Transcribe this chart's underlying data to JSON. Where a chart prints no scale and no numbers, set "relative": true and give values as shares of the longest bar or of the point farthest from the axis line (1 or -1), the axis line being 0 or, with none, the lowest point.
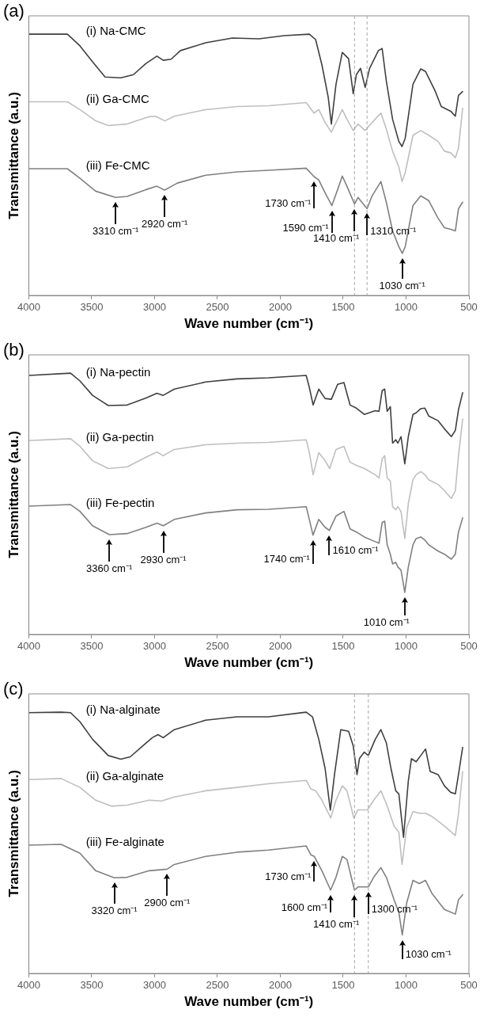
{
  "chart_data": [
    {
      "type": "line",
      "title": "(a)",
      "xlabel": "Wave number (cm⁻¹)",
      "ylabel": "Transmittance (a.u.)",
      "relative": true,
      "legend": false,
      "grid": false,
      "xlim": [
        4000,
        500
      ],
      "xticks": [
        4000,
        3500,
        3000,
        2500,
        2000,
        1500,
        1000,
        500
      ],
      "series": [
        {
          "name": "(i) Na-CMC",
          "color": "#3f3f3f",
          "x": [
            4000,
            3693,
            3593,
            3493,
            3393,
            3268,
            3168,
            3068,
            2981,
            2931,
            2868,
            2794,
            2594,
            2381,
            2169,
            1969,
            1769,
            1719,
            1669,
            1619,
            1594,
            1557,
            1507,
            1457,
            1420,
            1395,
            1362,
            1325,
            1290,
            1220,
            1190,
            1157,
            1107,
            1057,
            1032,
            1007,
            945,
            883,
            845,
            770,
            720,
            645,
            608,
            583,
            550
          ],
          "values": [
            1.0,
            1.0,
            0.955,
            0.894,
            0.836,
            0.833,
            0.845,
            0.888,
            0.916,
            0.9,
            0.904,
            0.937,
            0.967,
            0.985,
            0.982,
            0.994,
            1.0,
            0.979,
            0.882,
            0.759,
            0.656,
            0.808,
            0.93,
            0.906,
            0.772,
            0.845,
            0.869,
            0.796,
            0.869,
            0.937,
            0.945,
            0.821,
            0.674,
            0.589,
            0.57,
            0.601,
            0.808,
            0.867,
            0.857,
            0.784,
            0.723,
            0.705,
            0.686,
            0.766,
            0.78
          ]
        },
        {
          "name": "(ii) Ga-CMC",
          "color": "#bfbfbf",
          "x": [
            4000,
            3693,
            3593,
            3468,
            3368,
            3218,
            3043,
            2993,
            2918,
            2843,
            2594,
            2344,
            2094,
            1794,
            1732,
            1694,
            1644,
            1594,
            1544,
            1507,
            1470,
            1420,
            1382,
            1325,
            1270,
            1200,
            1157,
            1107,
            1057,
            1032,
            1007,
            945,
            883,
            820,
            745,
            695,
            645,
            608,
            583,
            550
          ],
          "values": [
            0.741,
            0.741,
            0.711,
            0.668,
            0.65,
            0.656,
            0.684,
            0.686,
            0.668,
            0.686,
            0.711,
            0.723,
            0.726,
            0.738,
            0.698,
            0.711,
            0.662,
            0.625,
            0.674,
            0.711,
            0.674,
            0.631,
            0.656,
            0.631,
            0.662,
            0.698,
            0.637,
            0.552,
            0.491,
            0.436,
            0.469,
            0.613,
            0.631,
            0.613,
            0.589,
            0.552,
            0.546,
            0.527,
            0.564,
            0.717
          ]
        },
        {
          "name": "(iii) Fe-CMC",
          "color": "#808080",
          "x": [
            4000,
            3693,
            3593,
            3468,
            3310,
            3218,
            3068,
            2981,
            2920,
            2818,
            2594,
            2344,
            2094,
            1794,
            1730,
            1694,
            1644,
            1590,
            1544,
            1507,
            1470,
            1410,
            1382,
            1310,
            1270,
            1200,
            1157,
            1107,
            1057,
            1030,
            1007,
            945,
            883,
            820,
            745,
            695,
            645,
            608,
            583,
            550
          ],
          "values": [
            0.485,
            0.485,
            0.448,
            0.399,
            0.375,
            0.379,
            0.405,
            0.418,
            0.403,
            0.43,
            0.46,
            0.473,
            0.479,
            0.487,
            0.454,
            0.442,
            0.393,
            0.344,
            0.405,
            0.457,
            0.418,
            0.35,
            0.375,
            0.332,
            0.381,
            0.436,
            0.357,
            0.247,
            0.186,
            0.161,
            0.186,
            0.344,
            0.381,
            0.363,
            0.295,
            0.259,
            0.253,
            0.247,
            0.332,
            0.357
          ]
        }
      ],
      "ref_lines": [
        {
          "axis": "x",
          "value": 1410,
          "color": "#a6a6a6",
          "line_style": "dashed"
        },
        {
          "axis": "x",
          "value": 1310,
          "color": "#a6a6a6",
          "line_style": "dashed"
        }
      ],
      "annotations": [
        {
          "text": "3310 cm⁻¹",
          "x": 3310,
          "y": 0.375
        },
        {
          "text": "2920 cm⁻¹",
          "x": 2920,
          "y": 0.403
        },
        {
          "text": "1730 cm⁻¹",
          "x": 1730,
          "y": 0.454
        },
        {
          "text": "1590 cm⁻¹",
          "x": 1590,
          "y": 0.344
        },
        {
          "text": "1410 cm⁻¹",
          "x": 1410,
          "y": 0.35
        },
        {
          "text": "1310 cm⁻¹",
          "x": 1310,
          "y": 0.332
        },
        {
          "text": "1030 cm⁻¹",
          "x": 1030,
          "y": 0.161
        }
      ]
    },
    {
      "type": "line",
      "title": "(b)",
      "xlabel": "Wave number (cm⁻¹)",
      "ylabel": "Transmittance (a.u.)",
      "relative": true,
      "legend": false,
      "grid": false,
      "xlim": [
        4000,
        500
      ],
      "xticks": [
        4000,
        3500,
        3000,
        2500,
        2000,
        1500,
        1000,
        500
      ],
      "series": [
        {
          "name": "(i) Na-pectin",
          "color": "#3f3f3f",
          "x": [
            4000,
            3668,
            3593,
            3493,
            3368,
            3218,
            3068,
            2981,
            2931,
            2843,
            2594,
            2344,
            2094,
            1794,
            1769,
            1739,
            1694,
            1644,
            1594,
            1544,
            1494,
            1445,
            1395,
            1332,
            1245,
            1215,
            1190,
            1170,
            1150,
            1125,
            1107,
            1082,
            1065,
            1040,
            1010,
            982,
            945,
            920,
            883,
            850,
            820,
            745,
            695,
            640,
            608,
            583,
            550
          ],
          "values": [
            0.991,
            1.0,
            0.97,
            0.915,
            0.876,
            0.878,
            0.905,
            0.923,
            0.915,
            0.939,
            0.966,
            0.978,
            0.982,
            0.991,
            0.945,
            0.878,
            0.939,
            0.903,
            0.9,
            0.957,
            0.964,
            0.878,
            0.866,
            0.842,
            0.856,
            0.854,
            0.933,
            0.939,
            0.854,
            0.872,
            0.732,
            0.745,
            0.732,
            0.757,
            0.653,
            0.757,
            0.842,
            0.848,
            0.864,
            0.866,
            0.836,
            0.818,
            0.787,
            0.757,
            0.781,
            0.86,
            0.925
          ]
        },
        {
          "name": "(ii) Ga-pectin",
          "color": "#bfbfbf",
          "x": [
            4000,
            3668,
            3593,
            3493,
            3368,
            3218,
            3068,
            2981,
            2931,
            2843,
            2594,
            2344,
            2094,
            1794,
            1769,
            1739,
            1694,
            1644,
            1607,
            1557,
            1494,
            1445,
            1395,
            1332,
            1245,
            1215,
            1190,
            1170,
            1150,
            1125,
            1107,
            1082,
            1065,
            1040,
            1010,
            982,
            945,
            920,
            883,
            850,
            820,
            745,
            695,
            640,
            608,
            583,
            550
          ],
          "values": [
            0.742,
            0.749,
            0.72,
            0.665,
            0.635,
            0.641,
            0.678,
            0.698,
            0.684,
            0.708,
            0.726,
            0.732,
            0.735,
            0.745,
            0.696,
            0.611,
            0.696,
            0.665,
            0.635,
            0.708,
            0.72,
            0.659,
            0.647,
            0.635,
            0.611,
            0.599,
            0.672,
            0.684,
            0.599,
            0.587,
            0.489,
            0.477,
            0.489,
            0.47,
            0.367,
            0.501,
            0.592,
            0.611,
            0.623,
            0.611,
            0.592,
            0.574,
            0.55,
            0.52,
            0.55,
            0.684,
            0.824
          ]
        },
        {
          "name": "(iii) Fe-pectin",
          "color": "#808080",
          "x": [
            4000,
            3668,
            3593,
            3493,
            3360,
            3218,
            3068,
            2981,
            2930,
            2843,
            2594,
            2344,
            2094,
            1794,
            1769,
            1740,
            1694,
            1644,
            1610,
            1557,
            1494,
            1445,
            1395,
            1332,
            1245,
            1215,
            1190,
            1170,
            1150,
            1125,
            1107,
            1082,
            1065,
            1040,
            1010,
            982,
            945,
            920,
            883,
            850,
            820,
            745,
            695,
            640,
            608,
            583,
            550
          ],
          "values": [
            0.491,
            0.497,
            0.471,
            0.416,
            0.382,
            0.386,
            0.41,
            0.426,
            0.416,
            0.44,
            0.465,
            0.477,
            0.479,
            0.489,
            0.44,
            0.38,
            0.44,
            0.41,
            0.398,
            0.453,
            0.471,
            0.404,
            0.392,
            0.373,
            0.355,
            0.349,
            0.428,
            0.434,
            0.343,
            0.307,
            0.27,
            0.276,
            0.258,
            0.246,
            0.161,
            0.258,
            0.343,
            0.367,
            0.373,
            0.361,
            0.343,
            0.319,
            0.307,
            0.288,
            0.307,
            0.392,
            0.446
          ]
        }
      ],
      "annotations": [
        {
          "text": "3360 cm⁻¹",
          "x": 3360,
          "y": 0.382
        },
        {
          "text": "2930 cm⁻¹",
          "x": 2930,
          "y": 0.416
        },
        {
          "text": "1740 cm⁻¹",
          "x": 1740,
          "y": 0.38
        },
        {
          "text": "1610 cm⁻¹",
          "x": 1610,
          "y": 0.398
        },
        {
          "text": "1010 cm⁻¹",
          "x": 1010,
          "y": 0.161
        }
      ]
    },
    {
      "type": "line",
      "title": "(c)",
      "xlabel": "Wave number (cm⁻¹)",
      "ylabel": "Transmittance (a.u.)",
      "relative": true,
      "legend": false,
      "grid": false,
      "xlim": [
        4000,
        500
      ],
      "xticks": [
        4000,
        3500,
        3000,
        2500,
        2000,
        1500,
        1000,
        500
      ],
      "series": [
        {
          "name": "(i) Na-alginate",
          "color": "#3f3f3f",
          "x": [
            4000,
            3743,
            3668,
            3593,
            3493,
            3368,
            3268,
            3193,
            3093,
            3018,
            2973,
            2931,
            2843,
            2594,
            2344,
            2094,
            1794,
            1744,
            1694,
            1644,
            1602,
            1569,
            1519,
            1457,
            1420,
            1390,
            1370,
            1332,
            1300,
            1245,
            1200,
            1157,
            1120,
            1082,
            1057,
            1020,
            982,
            957,
            920,
            883,
            845,
            808,
            745,
            695,
            645,
            608,
            583,
            550
          ],
          "values": [
            0.998,
            1.0,
            0.998,
            0.963,
            0.896,
            0.834,
            0.82,
            0.829,
            0.871,
            0.902,
            0.914,
            0.902,
            0.933,
            0.969,
            0.982,
            0.982,
            1.0,
            0.982,
            0.896,
            0.785,
            0.625,
            0.761,
            0.933,
            0.927,
            0.871,
            0.761,
            0.823,
            0.847,
            0.834,
            0.896,
            0.933,
            0.883,
            0.785,
            0.699,
            0.687,
            0.521,
            0.736,
            0.822,
            0.81,
            0.834,
            0.859,
            0.773,
            0.761,
            0.718,
            0.693,
            0.687,
            0.761,
            0.865
          ]
        },
        {
          "name": "(ii) Ga-alginate",
          "color": "#bfbfbf",
          "x": [
            4000,
            3743,
            3593,
            3468,
            3343,
            3218,
            3043,
            2943,
            2843,
            2594,
            2344,
            2094,
            1794,
            1757,
            1719,
            1669,
            1599,
            1557,
            1507,
            1470,
            1415,
            1382,
            1307,
            1257,
            1200,
            1157,
            1095,
            1057,
            1032,
            995,
            945,
            895,
            845,
            795,
            695,
            608,
            583,
            550
          ],
          "values": [
            0.742,
            0.746,
            0.712,
            0.663,
            0.64,
            0.644,
            0.663,
            0.66,
            0.675,
            0.699,
            0.712,
            0.726,
            0.739,
            0.706,
            0.699,
            0.663,
            0.595,
            0.663,
            0.718,
            0.699,
            0.595,
            0.626,
            0.626,
            0.663,
            0.699,
            0.65,
            0.564,
            0.54,
            0.417,
            0.558,
            0.62,
            0.613,
            0.613,
            0.601,
            0.564,
            0.528,
            0.613,
            0.773
          ]
        },
        {
          "name": "(iii) Fe-alginate",
          "color": "#808080",
          "x": [
            4000,
            3743,
            3593,
            3468,
            3320,
            3218,
            3043,
            2900,
            2843,
            2594,
            2344,
            2094,
            1794,
            1757,
            1730,
            1669,
            1600,
            1557,
            1507,
            1470,
            1410,
            1382,
            1300,
            1257,
            1200,
            1157,
            1095,
            1057,
            1030,
            995,
            945,
            895,
            845,
            795,
            695,
            608,
            583,
            550
          ],
          "values": [
            0.491,
            0.494,
            0.46,
            0.393,
            0.366,
            0.368,
            0.393,
            0.399,
            0.417,
            0.448,
            0.464,
            0.472,
            0.488,
            0.454,
            0.448,
            0.393,
            0.319,
            0.368,
            0.448,
            0.436,
            0.319,
            0.331,
            0.331,
            0.368,
            0.405,
            0.368,
            0.282,
            0.233,
            0.147,
            0.27,
            0.356,
            0.344,
            0.356,
            0.307,
            0.245,
            0.227,
            0.282,
            0.301
          ]
        }
      ],
      "ref_lines": [
        {
          "axis": "x",
          "value": 1410,
          "color": "#a6a6a6",
          "line_style": "dashed"
        },
        {
          "axis": "x",
          "value": 1300,
          "color": "#a6a6a6",
          "line_style": "dashed"
        }
      ],
      "annotations": [
        {
          "text": "3320 cm⁻¹",
          "x": 3320,
          "y": 0.366
        },
        {
          "text": "2900 cm⁻¹",
          "x": 2900,
          "y": 0.399
        },
        {
          "text": "1730 cm⁻¹",
          "x": 1730,
          "y": 0.448
        },
        {
          "text": "1600 cm⁻¹",
          "x": 1600,
          "y": 0.319
        },
        {
          "text": "1410 cm⁻¹",
          "x": 1410,
          "y": 0.319
        },
        {
          "text": "1300 cm⁻¹",
          "x": 1300,
          "y": 0.331
        },
        {
          "text": "1030 cm⁻¹",
          "x": 1030,
          "y": 0.147
        }
      ]
    }
  ]
}
